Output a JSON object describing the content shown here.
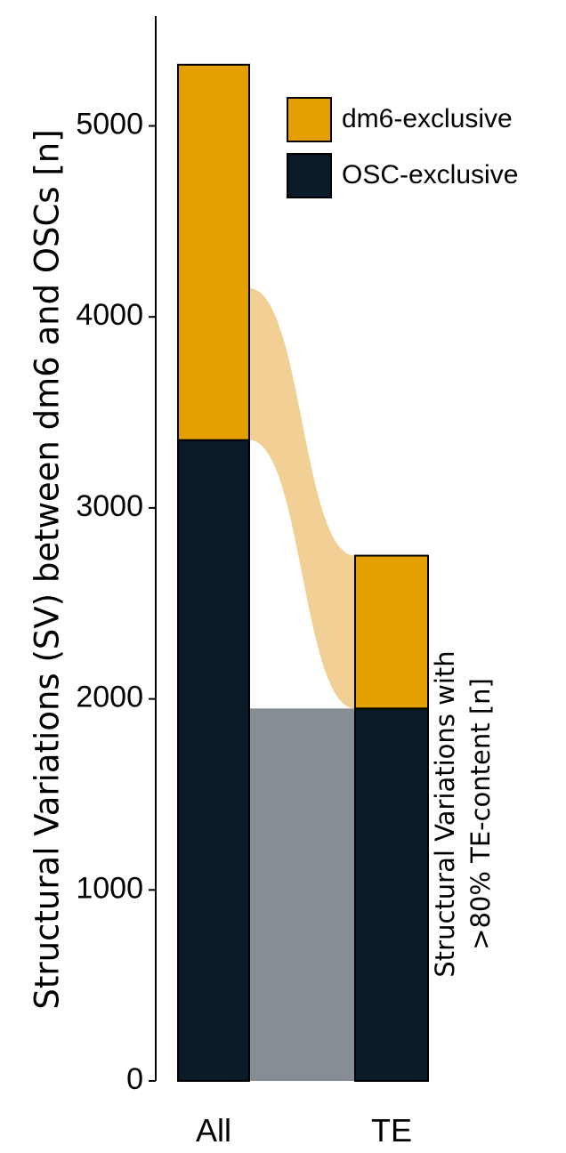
{
  "chart_data": {
    "type": "bar",
    "stacked": true,
    "categories": [
      "All",
      "TE"
    ],
    "series": [
      {
        "name": "OSC-exclusive",
        "values": [
          3355,
          1950
        ],
        "color": "#0b1a29"
      },
      {
        "name": "dm6-exclusive",
        "values": [
          1965,
          800
        ],
        "color": "#e3a000"
      }
    ],
    "ylabel": "Structural Variations (SV) between dm6 and OSCs [n]",
    "side_label_line1": "Structural Variations with",
    "side_label_line2": ">80% TE-content [n]",
    "yticks": [
      0,
      1000,
      2000,
      3000,
      4000,
      5000
    ],
    "ylim": [
      0,
      5600
    ],
    "legend_position": "top-right",
    "flows": [
      {
        "from_category": "All",
        "to_category": "TE",
        "from_range": [
          0,
          1950
        ],
        "to_range": [
          0,
          1950
        ],
        "color": "#878d94"
      },
      {
        "from_category": "All",
        "to_category": "TE",
        "from_range": [
          3355,
          4150
        ],
        "to_range": [
          1950,
          2750
        ],
        "color": "#f2d095"
      }
    ]
  }
}
